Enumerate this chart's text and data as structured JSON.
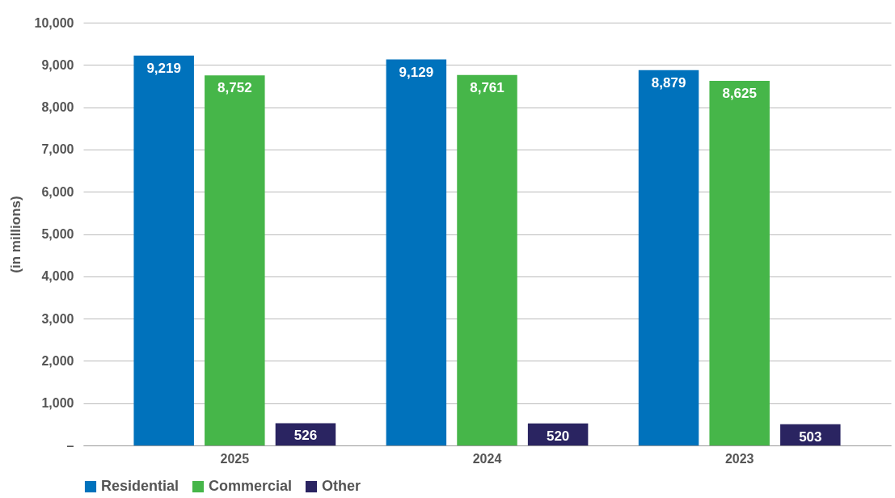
{
  "chart_data": {
    "type": "bar",
    "ylabel": "(in millions)",
    "categories": [
      "2025",
      "2024",
      "2023"
    ],
    "series": [
      {
        "name": "Residential",
        "color": "#0072bc",
        "values": [
          9219,
          9129,
          8879
        ],
        "value_labels": [
          "9,219",
          "9,129",
          "8,879"
        ]
      },
      {
        "name": "Commercial",
        "color": "#46b649",
        "values": [
          8752,
          8761,
          8625
        ],
        "value_labels": [
          "8,752",
          "8,761",
          "8,625"
        ]
      },
      {
        "name": "Other",
        "color": "#2a2461",
        "values": [
          526,
          520,
          503
        ],
        "value_labels": [
          "526",
          "520",
          "503"
        ]
      }
    ],
    "ylim": [
      0,
      10000
    ],
    "yticks": [
      {
        "value": 0,
        "label": "–"
      },
      {
        "value": 1000,
        "label": "1,000"
      },
      {
        "value": 2000,
        "label": "2,000"
      },
      {
        "value": 3000,
        "label": "3,000"
      },
      {
        "value": 4000,
        "label": "4,000"
      },
      {
        "value": 5000,
        "label": "5,000"
      },
      {
        "value": 6000,
        "label": "6,000"
      },
      {
        "value": 7000,
        "label": "7,000"
      },
      {
        "value": 8000,
        "label": "8,000"
      },
      {
        "value": 9000,
        "label": "9,000"
      },
      {
        "value": 10000,
        "label": "10,000"
      }
    ],
    "grid": "y",
    "legend": "bottom"
  }
}
